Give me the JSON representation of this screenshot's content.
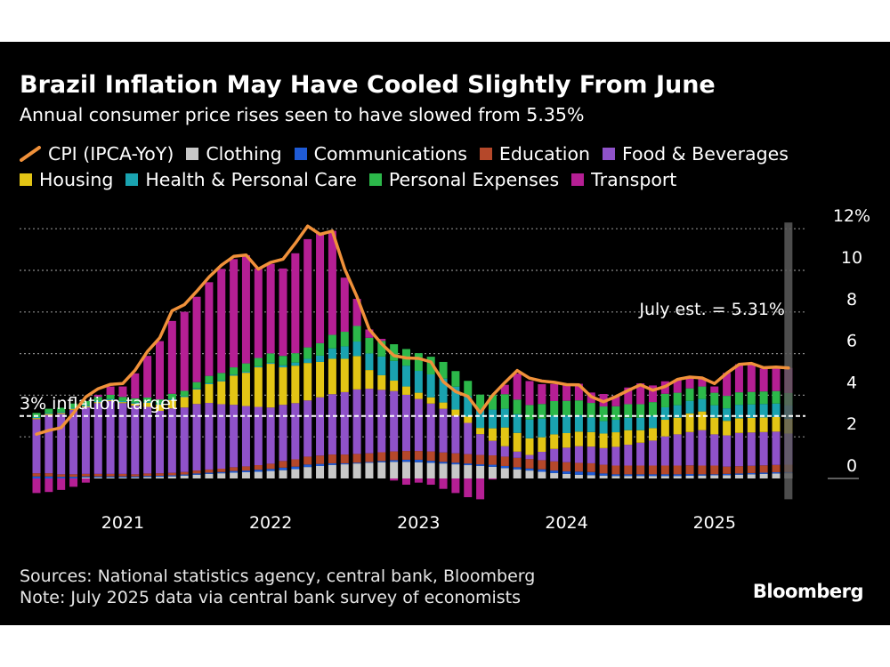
{
  "chart_data": {
    "type": "bar",
    "title": "Brazil Inflation May Have Cooled Slightly From June",
    "subtitle": "Annual consumer price rises seen to have slowed from 5.35%",
    "y_unit": "%",
    "ylim": [
      -1.5,
      12
    ],
    "y_ticks": [
      {
        "v": 12,
        "label": "12%"
      },
      {
        "v": 10,
        "label": "10"
      },
      {
        "v": 8,
        "label": "8"
      },
      {
        "v": 6,
        "label": "6"
      },
      {
        "v": 4,
        "label": "4"
      },
      {
        "v": 2,
        "label": "2"
      },
      {
        "v": 0,
        "label": "0"
      }
    ],
    "x_ticks": [
      {
        "i": 7,
        "label": "2021"
      },
      {
        "i": 19,
        "label": "2022"
      },
      {
        "i": 31,
        "label": "2023"
      },
      {
        "i": 43,
        "label": "2024"
      },
      {
        "i": 55,
        "label": "2025"
      }
    ],
    "annotation": {
      "label": "July est. = 5.31%",
      "value": 5.31
    },
    "target": {
      "label": "3% inflation target",
      "value": 3
    },
    "series_order": [
      "Clothing",
      "Communications",
      "Education",
      "Food & Beverages",
      "Housing",
      "Health & Personal Care",
      "Personal Expenses",
      "Transport"
    ],
    "colors": {
      "Clothing": "#c8c8c8",
      "Communications": "#1f5bd6",
      "Education": "#b5482a",
      "Food & Beverages": "#8f52c9",
      "Housing": "#e3c515",
      "Health & Personal Care": "#1aa3b0",
      "Personal Expenses": "#2cb84a",
      "Transport": "#b51f94",
      "CPI (IPCA-YoY)": "#f0913a"
    },
    "legend": [
      {
        "name": "CPI (IPCA-YoY)",
        "kind": "line"
      },
      {
        "name": "Clothing",
        "kind": "box"
      },
      {
        "name": "Communications",
        "kind": "box"
      },
      {
        "name": "Education",
        "kind": "box"
      },
      {
        "name": "Food & Beverages",
        "kind": "box"
      },
      {
        "name": "Housing",
        "kind": "box"
      },
      {
        "name": "Health & Personal Care",
        "kind": "box"
      },
      {
        "name": "Personal Expenses",
        "kind": "box"
      },
      {
        "name": "Transport",
        "kind": "box"
      }
    ],
    "months": [
      "2020-06",
      "2020-07",
      "2020-08",
      "2020-09",
      "2020-10",
      "2020-11",
      "2020-12",
      "2021-01",
      "2021-02",
      "2021-03",
      "2021-04",
      "2021-05",
      "2021-06",
      "2021-07",
      "2021-08",
      "2021-09",
      "2021-10",
      "2021-11",
      "2021-12",
      "2022-01",
      "2022-02",
      "2022-03",
      "2022-04",
      "2022-05",
      "2022-06",
      "2022-07",
      "2022-08",
      "2022-09",
      "2022-10",
      "2022-11",
      "2022-12",
      "2023-01",
      "2023-02",
      "2023-03",
      "2023-04",
      "2023-05",
      "2023-06",
      "2023-07",
      "2023-08",
      "2023-09",
      "2023-10",
      "2023-11",
      "2023-12",
      "2024-01",
      "2024-02",
      "2024-03",
      "2024-04",
      "2024-05",
      "2024-06",
      "2024-07",
      "2024-08",
      "2024-09",
      "2024-10",
      "2024-11",
      "2024-12",
      "2025-01",
      "2025-02",
      "2025-03",
      "2025-04",
      "2025-05",
      "2025-06",
      "2025-07"
    ],
    "cpi": [
      2.13,
      2.31,
      2.44,
      3.14,
      3.92,
      4.31,
      4.52,
      4.56,
      5.2,
      6.1,
      6.76,
      8.06,
      8.35,
      8.99,
      9.68,
      10.25,
      10.67,
      10.74,
      10.06,
      10.38,
      10.54,
      11.3,
      12.13,
      11.73,
      11.89,
      10.07,
      8.73,
      7.17,
      6.47,
      5.9,
      5.79,
      5.77,
      5.6,
      4.65,
      4.18,
      3.94,
      3.16,
      3.99,
      4.61,
      5.19,
      4.82,
      4.68,
      4.62,
      4.51,
      4.5,
      3.93,
      3.69,
      3.93,
      4.23,
      4.5,
      4.24,
      4.42,
      4.76,
      4.87,
      4.83,
      4.56,
      5.06,
      5.48,
      5.53,
      5.32,
      5.35,
      5.31
    ],
    "components": {
      "Clothing": [
        0,
        0,
        0,
        0,
        0.05,
        0.05,
        0.05,
        0.05,
        0.05,
        0.07,
        0.08,
        0.1,
        0.14,
        0.18,
        0.22,
        0.25,
        0.28,
        0.3,
        0.32,
        0.36,
        0.4,
        0.45,
        0.55,
        0.6,
        0.65,
        0.68,
        0.72,
        0.75,
        0.78,
        0.8,
        0.8,
        0.78,
        0.75,
        0.72,
        0.68,
        0.64,
        0.6,
        0.56,
        0.5,
        0.44,
        0.38,
        0.32,
        0.26,
        0.22,
        0.18,
        0.16,
        0.14,
        0.12,
        0.12,
        0.12,
        0.12,
        0.12,
        0.12,
        0.13,
        0.14,
        0.15,
        0.16,
        0.18,
        0.2,
        0.22,
        0.24,
        0.25
      ],
      "Communications": [
        0.1,
        0.1,
        0.08,
        0.08,
        0.05,
        0.05,
        0.05,
        0.05,
        0.05,
        0.05,
        0.05,
        0.05,
        0.05,
        0.06,
        0.06,
        0.06,
        0.08,
        0.08,
        0.1,
        0.1,
        0.12,
        0.12,
        0.12,
        0.1,
        0.08,
        0.05,
        0.04,
        0.04,
        0.06,
        0.08,
        0.1,
        0.12,
        0.1,
        0.08,
        0.08,
        0.08,
        0.08,
        0.1,
        0.1,
        0.1,
        0.1,
        0.12,
        0.12,
        0.12,
        0.15,
        0.15,
        0.1,
        0.08,
        0.08,
        0.08,
        0.08,
        0.08,
        0.08,
        0.08,
        0.06,
        0.05,
        0.06,
        0.06,
        0.06,
        0.06,
        0.06,
        0.06
      ],
      "Education": [
        0.15,
        0.15,
        0.12,
        0.12,
        0.12,
        0.12,
        0.12,
        0.12,
        0.1,
        0.12,
        0.12,
        0.12,
        0.12,
        0.14,
        0.15,
        0.16,
        0.18,
        0.2,
        0.22,
        0.25,
        0.32,
        0.35,
        0.38,
        0.4,
        0.42,
        0.42,
        0.42,
        0.42,
        0.42,
        0.42,
        0.42,
        0.42,
        0.45,
        0.45,
        0.45,
        0.45,
        0.45,
        0.45,
        0.45,
        0.45,
        0.45,
        0.44,
        0.44,
        0.44,
        0.42,
        0.42,
        0.42,
        0.42,
        0.42,
        0.42,
        0.42,
        0.42,
        0.42,
        0.42,
        0.42,
        0.42,
        0.35,
        0.35,
        0.35,
        0.35,
        0.35,
        0.35
      ],
      "Food & Beverages": [
        2.6,
        2.8,
        2.9,
        3.1,
        3.2,
        3.4,
        3.5,
        3.4,
        3.3,
        3.2,
        3.0,
        3.1,
        3.1,
        3.2,
        3.2,
        3.1,
        3.0,
        2.9,
        2.8,
        2.7,
        2.7,
        2.7,
        2.7,
        2.8,
        2.9,
        3.0,
        3.1,
        3.1,
        3.0,
        2.9,
        2.7,
        2.5,
        2.3,
        2.1,
        1.8,
        1.5,
        1.0,
        0.7,
        0.5,
        0.3,
        0.2,
        0.4,
        0.6,
        0.7,
        0.8,
        0.8,
        0.8,
        0.9,
        1.0,
        1.1,
        1.2,
        1.4,
        1.5,
        1.6,
        1.7,
        1.5,
        1.5,
        1.6,
        1.6,
        1.6,
        1.6,
        1.5
      ],
      "Housing": [
        0.05,
        0.05,
        0.05,
        0.05,
        0.05,
        0.05,
        0.05,
        0.05,
        0.1,
        0.2,
        0.3,
        0.4,
        0.5,
        0.7,
        0.9,
        1.1,
        1.4,
        1.6,
        1.9,
        2.1,
        1.8,
        1.8,
        1.8,
        1.7,
        1.7,
        1.6,
        1.6,
        0.9,
        0.7,
        0.5,
        0.4,
        0.3,
        0.3,
        0.3,
        0.3,
        0.3,
        0.3,
        0.6,
        0.9,
        0.9,
        0.8,
        0.7,
        0.7,
        0.7,
        0.7,
        0.7,
        0.7,
        0.7,
        0.7,
        0.6,
        0.6,
        0.8,
        0.8,
        0.9,
        0.9,
        0.8,
        0.7,
        0.7,
        0.7,
        0.7,
        0.7,
        0.7
      ],
      "Health & Personal Care": [
        0.05,
        0.05,
        0.05,
        0.05,
        0.05,
        0.05,
        0.05,
        0.05,
        0.05,
        0.05,
        0.05,
        0.05,
        0.05,
        0.05,
        0.05,
        0.05,
        0.05,
        0.05,
        0.05,
        0.05,
        0.1,
        0.15,
        0.2,
        0.3,
        0.5,
        0.6,
        0.7,
        0.8,
        0.9,
        0.95,
        1.0,
        1.05,
        1.1,
        1.15,
        1.1,
        1.0,
        0.9,
        0.9,
        0.9,
        0.9,
        0.9,
        0.9,
        0.9,
        0.85,
        0.8,
        0.7,
        0.6,
        0.6,
        0.6,
        0.6,
        0.6,
        0.6,
        0.6,
        0.6,
        0.6,
        0.6,
        0.6,
        0.65,
        0.65,
        0.65,
        0.65,
        0.65
      ],
      "Personal Expenses": [
        0.2,
        0.2,
        0.2,
        0.2,
        0.2,
        0.2,
        0.2,
        0.2,
        0.2,
        0.2,
        0.2,
        0.25,
        0.25,
        0.3,
        0.35,
        0.35,
        0.35,
        0.4,
        0.4,
        0.45,
        0.45,
        0.45,
        0.55,
        0.6,
        0.65,
        0.7,
        0.75,
        0.75,
        0.75,
        0.8,
        0.8,
        0.85,
        0.85,
        0.8,
        0.75,
        0.72,
        0.7,
        0.7,
        0.7,
        0.7,
        0.7,
        0.7,
        0.7,
        0.7,
        0.7,
        0.7,
        0.7,
        0.65,
        0.65,
        0.65,
        0.65,
        0.65,
        0.6,
        0.6,
        0.6,
        0.6,
        0.6,
        0.6,
        0.6,
        0.6,
        0.6,
        0.6
      ],
      "Transport": [
        -0.7,
        -0.65,
        -0.55,
        -0.4,
        -0.2,
        0.1,
        0.4,
        0.5,
        1.2,
        2.0,
        2.8,
        3.5,
        3.8,
        4.1,
        4.5,
        5.0,
        5.2,
        5.2,
        4.3,
        4.3,
        4.2,
        4.8,
        5.2,
        5.3,
        5.0,
        2.6,
        1.3,
        0.4,
        0.1,
        -0.1,
        -0.3,
        -0.2,
        -0.3,
        -0.5,
        -0.7,
        -0.9,
        -1.0,
        -0.05,
        0.45,
        1.25,
        1.15,
        0.95,
        0.82,
        0.82,
        0.8,
        0.5,
        0.6,
        0.5,
        0.8,
        1.0,
        0.8,
        0.6,
        0.6,
        0.5,
        0.4,
        0.3,
        1.1,
        1.35,
        1.35,
        1.1,
        1.1,
        1.2
      ]
    }
  },
  "legend_labels": {
    "cpi": "CPI (IPCA-YoY)",
    "clothing": "Clothing",
    "communications": "Communications",
    "education": "Education",
    "food": "Food & Beverages",
    "housing": "Housing",
    "health": "Health & Personal Care",
    "personal": "Personal Expenses",
    "transport": "Transport"
  },
  "footer": {
    "sources": "Sources: National statistics agency, central bank, Bloomberg",
    "note": "Note: July 2025 data via central bank survey of economists",
    "brand": "Bloomberg"
  }
}
